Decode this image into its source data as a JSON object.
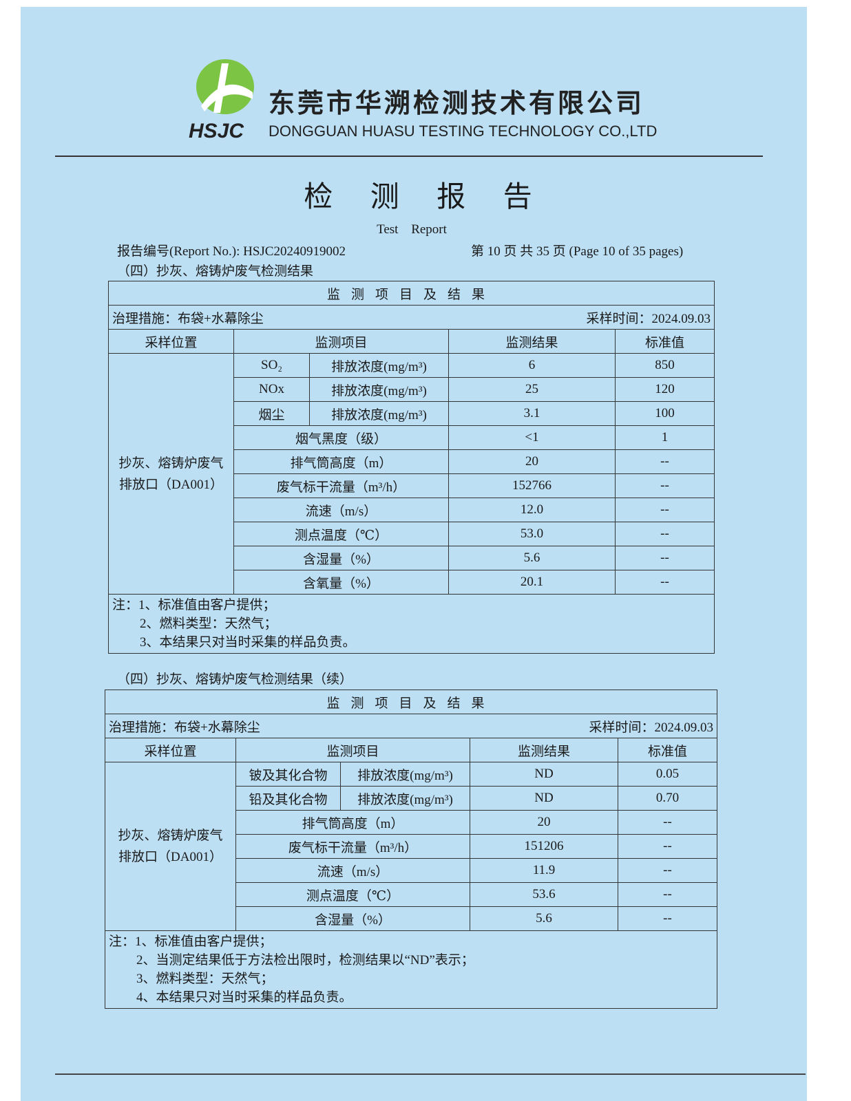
{
  "company": {
    "cn": "东莞市华溯检测技术有限公司",
    "en": "DONGGUAN HUASU TESTING TECHNOLOGY CO.,LTD",
    "logo_text": "HSJC"
  },
  "title": "检 测 报 告",
  "subtitle": "Test Report",
  "report_no": "报告编号(Report No.): HSJC20240919002",
  "page_info": "第 10 页 共 35 页 (Page 10 of 35 pages)",
  "table1": {
    "section": "（四）抄灰、熔铸炉废气检测结果",
    "caption": "监测项目及结果",
    "treatment": "治理措施：布袋+水幕除尘",
    "sample_time": "采样时间：2024.09.03",
    "headers": [
      "采样位置",
      "监测项目",
      "监测结果",
      "标准值"
    ],
    "location": "抄灰、熔铸炉废气排放口（DA001）",
    "sub_rows": [
      {
        "item": "SO₂",
        "param": "排放浓度(mg/m³)",
        "result": "6",
        "standard": "850"
      },
      {
        "item": "NOx",
        "param": "排放浓度(mg/m³)",
        "result": "25",
        "standard": "120"
      },
      {
        "item": "烟尘",
        "param": "排放浓度(mg/m³)",
        "result": "3.1",
        "standard": "100"
      }
    ],
    "rows": [
      {
        "item": "烟气黑度（级）",
        "result": "<1",
        "standard": "1"
      },
      {
        "item": "排气筒高度（m）",
        "result": "20",
        "standard": "--"
      },
      {
        "item": "废气标干流量（m³/h）",
        "result": "152766",
        "standard": "--"
      },
      {
        "item": "流速（m/s）",
        "result": "12.0",
        "standard": "--"
      },
      {
        "item": "测点温度（℃）",
        "result": "53.0",
        "standard": "--"
      },
      {
        "item": "含湿量（%）",
        "result": "5.6",
        "standard": "--"
      },
      {
        "item": "含氧量（%）",
        "result": "20.1",
        "standard": "--"
      }
    ],
    "notes": [
      "注：1、标准值由客户提供；",
      "2、燃料类型：天然气；",
      "3、本结果只对当时采集的样品负责。"
    ]
  },
  "table2": {
    "section": "（四）抄灰、熔铸炉废气检测结果（续）",
    "caption": "监测项目及结果",
    "treatment": "治理措施：布袋+水幕除尘",
    "sample_time": "采样时间：2024.09.03",
    "headers": [
      "采样位置",
      "监测项目",
      "监测结果",
      "标准值"
    ],
    "location": "抄灰、熔铸炉废气排放口（DA001）",
    "sub_rows": [
      {
        "item": "铍及其化合物",
        "param": "排放浓度(mg/m³)",
        "result": "ND",
        "standard": "0.05"
      },
      {
        "item": "铅及其化合物",
        "param": "排放浓度(mg/m³)",
        "result": "ND",
        "standard": "0.70"
      }
    ],
    "rows": [
      {
        "item": "排气筒高度（m）",
        "result": "20",
        "standard": "--"
      },
      {
        "item": "废气标干流量（m³/h）",
        "result": "151206",
        "standard": "--"
      },
      {
        "item": "流速（m/s）",
        "result": "11.9",
        "standard": "--"
      },
      {
        "item": "测点温度（℃）",
        "result": "53.6",
        "standard": "--"
      },
      {
        "item": "含湿量（%）",
        "result": "5.6",
        "standard": "--"
      }
    ],
    "notes": [
      "注：1、标准值由客户提供；",
      "2、当测定结果低于方法检出限时，检测结果以“ND”表示；",
      "3、燃料类型：天然气；",
      "4、本结果只对当时采集的样品负责。"
    ]
  },
  "watermark": "东莞市华溯检测技术有限公司 DONGGUAN HUASU TESTING TECHNOLOGY CO.,LTD",
  "colors": {
    "paper": "#bcdff4",
    "logo_green": "#6cc04a"
  }
}
